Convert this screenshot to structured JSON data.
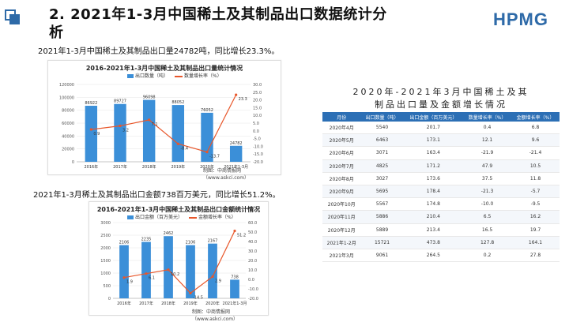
{
  "header": {
    "title_line1": "2. 2021年1-3月中国稀土及其制品出口数据统计分",
    "title_line2": "析",
    "brand": "HPMG"
  },
  "captions": {
    "volume": "2021年1-3月中国稀土及其制品出口量24782吨，同比增长23.3%。",
    "value": "2021年1-3月稀土及其制品出口金额738百万美元，同比增长51.2%。"
  },
  "chart_data": [
    {
      "type": "bar",
      "title": "2016-2021年1-3月中国稀土及其制品出口量统计情况",
      "categories": [
        "2016年",
        "2017年",
        "2018年",
        "2019年",
        "2020年",
        "2021年1-3月"
      ],
      "series": [
        {
          "name": "出口数量（吨）",
          "values": [
            86922,
            89727,
            96098,
            88052,
            76052,
            24782
          ]
        },
        {
          "name": "数量增长率（%）",
          "values": [
            0.9,
            3.2,
            7.1,
            -8.4,
            -13.7,
            23.3
          ]
        }
      ],
      "data_labels": [
        "86922",
        "89727",
        "96098",
        "88052",
        "76052",
        "24782"
      ],
      "rate_labels": [
        "0.9",
        "3.2",
        "7.1",
        "-8.4",
        "-13.7",
        "23.3"
      ],
      "ylim_left": [
        0,
        120000
      ],
      "left_ticks": [
        "120000",
        "100000",
        "80000",
        "60000",
        "40000",
        "20000",
        "0"
      ],
      "ylim_right": [
        -20,
        30
      ],
      "right_ticks": [
        "30.0",
        "25.0",
        "20.0",
        "15.0",
        "10.0",
        "5.0",
        "0.0",
        "-5.0",
        "-10.0",
        "-15.0",
        "-20.0"
      ],
      "source": "制图：中商情报网（www.askci.com）"
    },
    {
      "type": "bar",
      "title": "2016-2021年1-3月中国稀土及其制品出口金额统计情况",
      "categories": [
        "2016年",
        "2017年",
        "2018年",
        "2019年",
        "2020年",
        "2021年1-3月"
      ],
      "series": [
        {
          "name": "出口金额（百万美元）",
          "values": [
            2106,
            2235,
            2462,
            2106,
            2167,
            738
          ]
        },
        {
          "name": "金额增长率（%）",
          "values": [
            1.9,
            6.1,
            10.2,
            -14.5,
            2.9,
            51.2
          ]
        }
      ],
      "data_labels": [
        "2106",
        "2235",
        "2462",
        "2106",
        "2167",
        "738"
      ],
      "rate_labels": [
        "1.9",
        "6.1",
        "10.2",
        "-14.5",
        "2.9",
        "51.2"
      ],
      "ylim_left": [
        0,
        3000
      ],
      "left_ticks": [
        "3000",
        "2500",
        "2000",
        "1500",
        "1000",
        "500",
        "0"
      ],
      "ylim_right": [
        -20,
        60
      ],
      "right_ticks": [
        "60.0",
        "50.0",
        "40.0",
        "30.0",
        "20.0",
        "10.0",
        "0.0",
        "-10.0",
        "-20.0"
      ],
      "source": "制图：中商情报网（www.askci.com）"
    }
  ],
  "table": {
    "title_line1": "2020年-2021年3月中国稀土及其",
    "title_line2": "制品出口量及金额增长情况",
    "columns": [
      "月份",
      "出口数量（吨）",
      "出口金额（百万美元）",
      "数量增长率（%）",
      "金额增长率（%）"
    ],
    "rows": [
      [
        "2020年4月",
        "5540",
        "201.7",
        "0.4",
        "6.8"
      ],
      [
        "2020年5月",
        "6463",
        "173.1",
        "12.1",
        "9.6"
      ],
      [
        "2020年6月",
        "3071",
        "163.4",
        "-21.9",
        "-21.4"
      ],
      [
        "2020年7月",
        "4825",
        "171.2",
        "47.9",
        "10.5"
      ],
      [
        "2020年8月",
        "3027",
        "173.6",
        "37.5",
        "11.8"
      ],
      [
        "2020年9月",
        "5695",
        "178.4",
        "-21.3",
        "-5.7"
      ],
      [
        "2020年10月",
        "5567",
        "174.8",
        "-10.0",
        "-9.5"
      ],
      [
        "2020年11月",
        "5886",
        "210.4",
        "6.5",
        "16.2"
      ],
      [
        "2020年12月",
        "5889",
        "213.4",
        "16.5",
        "19.7"
      ],
      [
        "2021年1-2月",
        "15721",
        "473.8",
        "127.8",
        "164.1"
      ],
      [
        "2021年3月",
        "9061",
        "264.5",
        "0.2",
        "27.8"
      ]
    ]
  }
}
